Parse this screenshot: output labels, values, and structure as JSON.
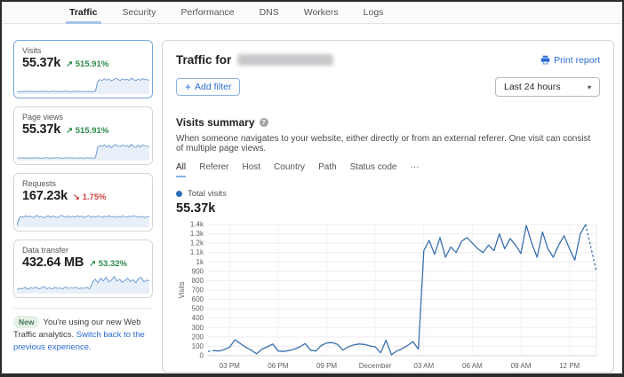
{
  "nav": {
    "tabs": [
      {
        "label": "Traffic",
        "active": true
      },
      {
        "label": "Security",
        "active": false
      },
      {
        "label": "Performance",
        "active": false
      },
      {
        "label": "DNS",
        "active": false
      },
      {
        "label": "Workers",
        "active": false
      },
      {
        "label": "Logs",
        "active": false
      }
    ]
  },
  "sidebar": {
    "cards": [
      {
        "label": "Visits",
        "value": "55.37k",
        "delta": "515.91%",
        "trend": "up",
        "active": true,
        "spark": [
          8,
          10,
          9,
          11,
          10,
          12,
          9,
          10,
          11,
          10,
          9,
          12,
          10,
          11,
          9,
          10,
          12,
          11,
          10,
          9,
          11,
          10,
          12,
          10,
          9,
          11,
          10,
          12,
          11,
          10,
          9,
          10,
          11,
          10,
          9,
          12,
          65,
          75,
          70,
          80,
          72,
          78,
          68,
          74,
          82,
          76,
          70,
          79,
          73,
          77,
          71,
          83,
          75,
          69,
          78,
          72,
          80,
          74,
          76,
          70
        ]
      },
      {
        "label": "Page views",
        "value": "55.37k",
        "delta": "515.91%",
        "trend": "up",
        "active": false,
        "spark": [
          9,
          11,
          10,
          12,
          9,
          11,
          10,
          9,
          12,
          10,
          11,
          9,
          10,
          12,
          10,
          9,
          11,
          10,
          12,
          10,
          9,
          11,
          10,
          12,
          11,
          10,
          9,
          10,
          11,
          10,
          9,
          12,
          10,
          11,
          9,
          12,
          68,
          78,
          72,
          82,
          70,
          80,
          66,
          76,
          84,
          74,
          72,
          81,
          75,
          79,
          69,
          85,
          73,
          67,
          80,
          70,
          82,
          76,
          74,
          72
        ]
      },
      {
        "label": "Requests",
        "value": "167.23k",
        "delta": "1.75%",
        "trend": "down",
        "active": false,
        "spark": [
          5,
          45,
          55,
          50,
          58,
          52,
          56,
          48,
          54,
          60,
          50,
          55,
          47,
          53,
          58,
          50,
          56,
          52,
          48,
          55,
          60,
          53,
          49,
          57,
          51,
          55,
          50,
          58,
          52,
          56,
          48,
          54,
          59,
          51,
          55,
          50,
          57,
          53,
          49,
          56,
          52,
          58,
          50,
          54,
          48,
          55,
          51,
          57,
          53,
          50,
          56,
          52,
          58,
          54,
          50,
          55,
          51,
          48,
          54,
          52
        ]
      },
      {
        "label": "Data transfer",
        "value": "432.64 MB",
        "delta": "53.32%",
        "trend": "up",
        "active": false,
        "spark": [
          18,
          25,
          22,
          30,
          20,
          28,
          24,
          32,
          22,
          26,
          35,
          23,
          28,
          21,
          30,
          25,
          27,
          22,
          33,
          24,
          28,
          26,
          31,
          23,
          27,
          25,
          30,
          22,
          60,
          75,
          55,
          80,
          65,
          85,
          60,
          70,
          90,
          65,
          75,
          58,
          68,
          80,
          62,
          72,
          55,
          78,
          85,
          60,
          70,
          65
        ]
      }
    ],
    "notice": {
      "badge": "New",
      "text": "You're using our new Web Traffic analytics.",
      "link": "Switch back to the previous experience."
    }
  },
  "main": {
    "title_prefix": "Traffic for",
    "print_report": "Print report",
    "add_filter_plus": "+",
    "add_filter": "Add filter",
    "time_range": "Last 24 hours",
    "summary": {
      "title": "Visits summary",
      "description": "When someone navigates to your website, either directly or from an external referer. One visit can consist of multiple page views.",
      "tabs": [
        {
          "label": "All",
          "active": true
        },
        {
          "label": "Referer",
          "active": false
        },
        {
          "label": "Host",
          "active": false
        },
        {
          "label": "Country",
          "active": false
        },
        {
          "label": "Path",
          "active": false
        },
        {
          "label": "···",
          "active": false,
          "name": "more-tabs"
        }
      ],
      "tabs_note": "tab between Path and more is Status code",
      "legend_label": "Total visits",
      "total": "55.37k"
    }
  },
  "icons": {
    "caret": "▾",
    "help": "?",
    "trend_up": "↗",
    "trend_down": "↘"
  },
  "colors": {
    "link_blue": "#2b6cd4",
    "green": "#2c8a4b",
    "red": "#d04343",
    "chart_line": "#3a70ae",
    "spark_line": "#6d9bd1",
    "legend_dot": "#2f6db8",
    "active_card_border": "#78a8dc"
  },
  "chart_data": {
    "type": "line",
    "title": "Visits summary",
    "xlabel": "",
    "ylabel": "Visits",
    "ylim": [
      0,
      1400
    ],
    "grid": true,
    "legend_position": "top-left",
    "yticks": [
      {
        "value": 0,
        "label": "0"
      },
      {
        "value": 100,
        "label": "100"
      },
      {
        "value": 200,
        "label": "200"
      },
      {
        "value": 300,
        "label": "300"
      },
      {
        "value": 400,
        "label": "400"
      },
      {
        "value": 500,
        "label": "500"
      },
      {
        "value": 600,
        "label": "600"
      },
      {
        "value": 700,
        "label": "700"
      },
      {
        "value": 800,
        "label": "800"
      },
      {
        "value": 900,
        "label": "900"
      },
      {
        "value": 1000,
        "label": "1k"
      },
      {
        "value": 1100,
        "label": "1.1k"
      },
      {
        "value": 1200,
        "label": "1.2k"
      },
      {
        "value": 1300,
        "label": "1.3k"
      },
      {
        "value": 1400,
        "label": "1.4k"
      }
    ],
    "xticks": [
      {
        "index": 4,
        "label": "03 PM"
      },
      {
        "index": 13,
        "label": "06 PM"
      },
      {
        "index": 22,
        "label": "09 PM"
      },
      {
        "index": 31,
        "label": "December"
      },
      {
        "index": 40,
        "label": "03 AM"
      },
      {
        "index": 49,
        "label": "06 AM"
      },
      {
        "index": 58,
        "label": "09 AM"
      },
      {
        "index": 67,
        "label": "12 PM"
      }
    ],
    "series": [
      {
        "name": "Total visits",
        "color": "#3a70ae",
        "dashed_head_points": 2,
        "dashed_tail_points": 3,
        "values": [
          45,
          55,
          50,
          65,
          90,
          170,
          130,
          90,
          60,
          20,
          70,
          95,
          125,
          50,
          45,
          55,
          70,
          95,
          130,
          60,
          50,
          110,
          135,
          140,
          120,
          60,
          95,
          115,
          125,
          120,
          105,
          95,
          30,
          165,
          10,
          50,
          75,
          110,
          150,
          70,
          1120,
          1230,
          1080,
          1260,
          1050,
          1160,
          1100,
          1220,
          1260,
          1200,
          1140,
          1100,
          1180,
          1120,
          1300,
          1140,
          1250,
          1180,
          1090,
          1390,
          1200,
          1050,
          1320,
          1140,
          1050,
          1180,
          1280,
          1140,
          1020,
          1300,
          1400,
          1150,
          900
        ]
      }
    ]
  }
}
